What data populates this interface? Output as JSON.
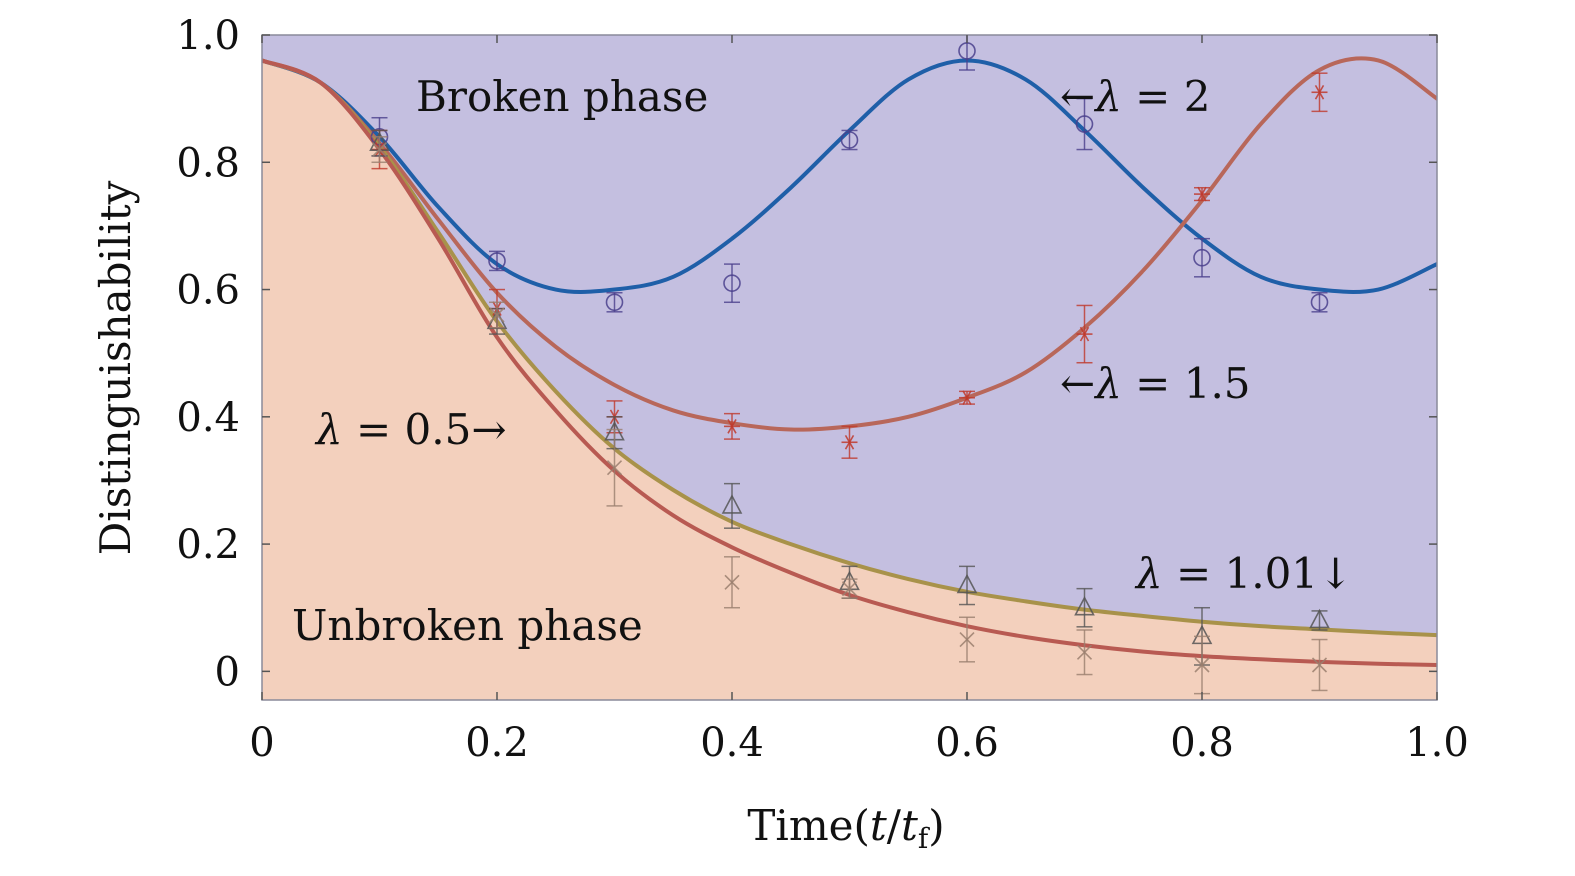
{
  "chart_data": {
    "type": "line",
    "title": "",
    "xlabel": "Time(t/t_f)",
    "xlabel_parts": {
      "prefix": "Time(",
      "t": "t",
      "slash": "/",
      "tf": "t",
      "sub": "f",
      "suffix": ")"
    },
    "ylabel": "Distinguishability",
    "xlim": [
      0,
      1.0
    ],
    "ylim": [
      -0.045,
      1.0
    ],
    "xticks": [
      0,
      0.2,
      0.4,
      0.6,
      0.8,
      1.0
    ],
    "xtick_labels": [
      "0",
      "0.2",
      "0.4",
      "0.6",
      "0.8",
      "1.0"
    ],
    "yticks": [
      0,
      0.2,
      0.4,
      0.6,
      0.8,
      1.0
    ],
    "ytick_labels": [
      "0",
      "0.2",
      "0.4",
      "0.6",
      "0.8",
      "1.0"
    ],
    "grid": false,
    "legend": "none",
    "regions": [
      {
        "label": "Broken phase",
        "color": "#c4bfe0"
      },
      {
        "label": "Unbroken phase",
        "color": "#f3d0bd"
      }
    ],
    "annotations": [
      {
        "lambda": "λ",
        "eq": " = 2",
        "arrow": "←",
        "arrow_side": "left"
      },
      {
        "lambda": "λ",
        "eq": " = 1.5",
        "arrow": "←",
        "arrow_side": "left"
      },
      {
        "lambda": "λ",
        "eq": " = 0.5",
        "arrow": "→",
        "arrow_side": "right"
      },
      {
        "lambda": "λ",
        "eq": " = 1.01",
        "arrow": "↓",
        "arrow_side": "right"
      }
    ],
    "series": [
      {
        "lambda": 2,
        "color": "#1f5fa8",
        "marker": "circle",
        "x": [
          0,
          0.05,
          0.1,
          0.15,
          0.2,
          0.25,
          0.3,
          0.35,
          0.4,
          0.45,
          0.5,
          0.55,
          0.6,
          0.65,
          0.7,
          0.75,
          0.8,
          0.85,
          0.9,
          0.95,
          1.0
        ],
        "y": [
          0.96,
          0.925,
          0.84,
          0.73,
          0.64,
          0.6,
          0.6,
          0.62,
          0.68,
          0.76,
          0.85,
          0.93,
          0.96,
          0.93,
          0.85,
          0.76,
          0.68,
          0.62,
          0.6,
          0.6,
          0.64
        ],
        "points": [
          [
            0.1,
            0.84,
            0.03
          ],
          [
            0.2,
            0.645,
            0.015
          ],
          [
            0.3,
            0.58,
            0.015
          ],
          [
            0.4,
            0.61,
            0.03
          ],
          [
            0.5,
            0.835,
            0.015
          ],
          [
            0.6,
            0.975,
            0.03
          ],
          [
            0.7,
            0.86,
            0.04
          ],
          [
            0.8,
            0.65,
            0.03
          ],
          [
            0.9,
            0.58,
            0.015
          ]
        ]
      },
      {
        "lambda": 1.5,
        "color": "#b8675a",
        "marker": "star",
        "x": [
          0,
          0.05,
          0.1,
          0.15,
          0.2,
          0.25,
          0.3,
          0.35,
          0.4,
          0.45,
          0.5,
          0.55,
          0.6,
          0.65,
          0.7,
          0.75,
          0.8,
          0.85,
          0.9,
          0.95,
          1.0
        ],
        "y": [
          0.96,
          0.925,
          0.83,
          0.71,
          0.595,
          0.51,
          0.45,
          0.41,
          0.39,
          0.38,
          0.385,
          0.4,
          0.43,
          0.47,
          0.54,
          0.63,
          0.74,
          0.86,
          0.945,
          0.96,
          0.9
        ],
        "points": [
          [
            0.1,
            0.82,
            0.03
          ],
          [
            0.2,
            0.57,
            0.03
          ],
          [
            0.3,
            0.4,
            0.025
          ],
          [
            0.4,
            0.385,
            0.02
          ],
          [
            0.5,
            0.36,
            0.025
          ],
          [
            0.6,
            0.43,
            0.01
          ],
          [
            0.7,
            0.53,
            0.045
          ],
          [
            0.8,
            0.75,
            0.01
          ],
          [
            0.9,
            0.91,
            0.03
          ]
        ]
      },
      {
        "lambda": 1.01,
        "color": "#a8924a",
        "marker": "triangle",
        "x": [
          0,
          0.05,
          0.1,
          0.15,
          0.2,
          0.25,
          0.3,
          0.35,
          0.4,
          0.45,
          0.5,
          0.55,
          0.6,
          0.65,
          0.7,
          0.75,
          0.8,
          0.85,
          0.9,
          0.95,
          1.0
        ],
        "y": [
          0.96,
          0.925,
          0.825,
          0.69,
          0.55,
          0.44,
          0.35,
          0.285,
          0.235,
          0.2,
          0.17,
          0.145,
          0.125,
          0.11,
          0.097,
          0.087,
          0.078,
          0.071,
          0.066,
          0.061,
          0.057
        ],
        "points": [
          [
            0.1,
            0.83,
            0.02
          ],
          [
            0.2,
            0.55,
            0.02
          ],
          [
            0.3,
            0.375,
            0.025
          ],
          [
            0.4,
            0.26,
            0.035
          ],
          [
            0.5,
            0.14,
            0.025
          ],
          [
            0.6,
            0.135,
            0.03
          ],
          [
            0.7,
            0.1,
            0.03
          ],
          [
            0.8,
            0.055,
            0.045
          ],
          [
            0.9,
            0.08,
            0.015
          ]
        ]
      },
      {
        "lambda": 0.5,
        "color": "#b85a52",
        "marker": "cross",
        "x": [
          0,
          0.05,
          0.1,
          0.15,
          0.2,
          0.25,
          0.3,
          0.35,
          0.4,
          0.45,
          0.5,
          0.55,
          0.6,
          0.65,
          0.7,
          0.75,
          0.8,
          0.85,
          0.9,
          0.95,
          1.0
        ],
        "y": [
          0.96,
          0.925,
          0.82,
          0.68,
          0.525,
          0.41,
          0.315,
          0.245,
          0.195,
          0.155,
          0.12,
          0.093,
          0.071,
          0.054,
          0.041,
          0.031,
          0.024,
          0.019,
          0.015,
          0.012,
          0.01
        ],
        "points": [
          [
            0.1,
            0.82,
            0.02
          ],
          [
            0.2,
            0.56,
            0.02
          ],
          [
            0.3,
            0.32,
            0.06
          ],
          [
            0.4,
            0.14,
            0.04
          ],
          [
            0.5,
            0.13,
            0.015
          ],
          [
            0.6,
            0.05,
            0.035
          ],
          [
            0.7,
            0.03,
            0.035
          ],
          [
            0.8,
            0.01,
            0.045
          ],
          [
            0.9,
            0.01,
            0.04
          ]
        ]
      }
    ]
  }
}
